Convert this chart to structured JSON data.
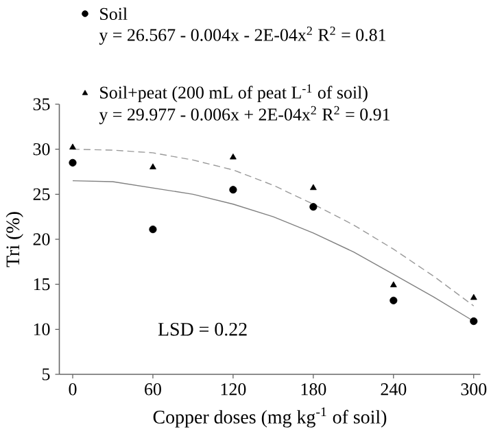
{
  "chart_data": {
    "type": "scatter",
    "xlabel": "Copper doses (mg kg$^{-1}$ of soil)",
    "ylabel": "Tri (%)",
    "x": [
      0,
      60,
      120,
      180,
      240,
      300
    ],
    "series": [
      {
        "name": "Soil",
        "marker": "circle",
        "color": "#000000",
        "values": [
          28.5,
          21.1,
          25.5,
          23.6,
          13.2,
          10.9
        ]
      },
      {
        "name": "Soil+peat (200 mL of peat L$^{-1}$ of soil)",
        "marker": "triangle",
        "color": "#000000",
        "values": [
          30.2,
          28.0,
          29.1,
          25.7,
          14.9,
          13.5
        ]
      },
      {
        "type": "line",
        "marker": "none",
        "line_style": "solid",
        "color": "#808080",
        "x": [
          0,
          30,
          60,
          90,
          120,
          150,
          180,
          210,
          240,
          270,
          300
        ],
        "values": [
          26.5,
          26.4,
          25.7,
          25.0,
          23.9,
          22.5,
          20.7,
          18.6,
          16.1,
          13.6,
          10.9
        ]
      },
      {
        "type": "line",
        "marker": "none",
        "line_style": "dashed",
        "color": "#999999",
        "x": [
          0,
          30,
          60,
          90,
          120,
          150,
          180,
          210,
          240,
          270,
          300
        ],
        "values": [
          30.0,
          29.9,
          29.6,
          28.8,
          27.7,
          26.0,
          23.9,
          21.6,
          18.9,
          15.9,
          12.6
        ]
      }
    ],
    "annotations": [
      "y = 26.567 - 0.004x - 2E-04x$^{2}$    R$^{2}$ = 0.81",
      "y = 29.977 - 0.006x + 2E-04x$^{2}$    R$^{2}$ = 0.91",
      "LSD = 0.22"
    ],
    "xlim": [
      -10,
      305
    ],
    "ylim": [
      5,
      35
    ],
    "xticks": [
      0,
      60,
      120,
      180,
      240,
      300
    ],
    "yticks": [
      5,
      10,
      15,
      20,
      25,
      30,
      35
    ],
    "legend": "top",
    "grid": false
  }
}
